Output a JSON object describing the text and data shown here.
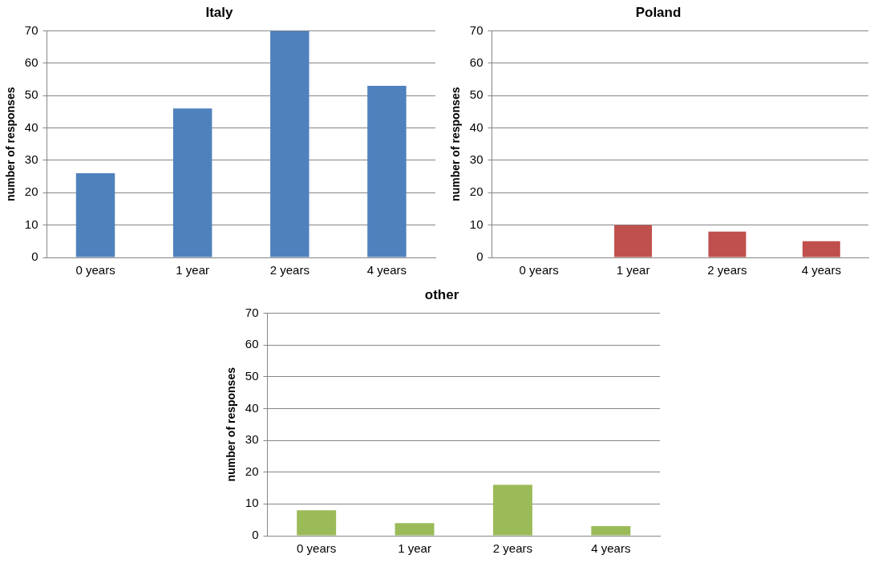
{
  "chart_data": [
    {
      "type": "bar",
      "title": "Italy",
      "ylabel": "number of responses",
      "categories": [
        "0 years",
        "1 year",
        "2 years",
        "4 years"
      ],
      "values": [
        26,
        46,
        70,
        53
      ],
      "color": "#4f81bd",
      "ylim": [
        0,
        70
      ],
      "yticks": [
        0,
        10,
        20,
        30,
        40,
        50,
        60,
        70
      ],
      "grid": "y",
      "legend": false
    },
    {
      "type": "bar",
      "title": "Poland",
      "ylabel": "number of responses",
      "categories": [
        "0 years",
        "1 year",
        "2 years",
        "4 years"
      ],
      "values": [
        0,
        10,
        8,
        5
      ],
      "color": "#c0504d",
      "ylim": [
        0,
        70
      ],
      "yticks": [
        0,
        10,
        20,
        30,
        40,
        50,
        60,
        70
      ],
      "grid": "y",
      "legend": false
    },
    {
      "type": "bar",
      "title": "other",
      "ylabel": "number of responses",
      "categories": [
        "0 years",
        "1 year",
        "2 years",
        "4 years"
      ],
      "values": [
        8,
        4,
        16,
        3
      ],
      "color": "#9bbb59",
      "ylim": [
        0,
        70
      ],
      "yticks": [
        0,
        10,
        20,
        30,
        40,
        50,
        60,
        70
      ],
      "grid": "y",
      "legend": false
    }
  ]
}
